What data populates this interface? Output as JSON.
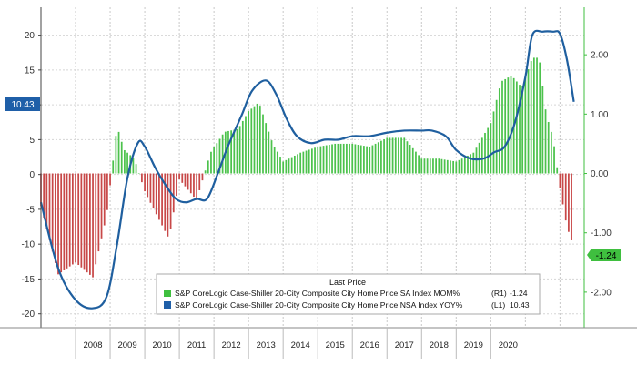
{
  "chart_data": {
    "type": "bar+line",
    "title": "",
    "x_labels": [
      "2008",
      "2009",
      "2010",
      "2011",
      "2012",
      "2013",
      "2014",
      "2015",
      "2016",
      "2017",
      "2018",
      "2019",
      "2020"
    ],
    "y_left": {
      "range": [
        -22,
        24
      ],
      "ticks": [
        20,
        15,
        10,
        5,
        0,
        -5,
        -10,
        -15,
        -20
      ]
    },
    "y_right": {
      "range": [
        -2.6,
        2.8
      ],
      "ticks": [
        "2.00",
        "1.00",
        "0.00",
        "-1.00",
        "-2.00"
      ]
    },
    "last_price_left": "10.43",
    "last_price_right": "-1.24",
    "legend": {
      "title": "Last Price",
      "entries": [
        {
          "label": "S&P CoreLogic Case-Shiller 20-City Composite City Home Price SA Index MOM%",
          "axis": "(R1)",
          "value": "-1.24",
          "color": "#3fbf3f"
        },
        {
          "label": "S&P CoreLogic Case-Shiller 20-City Composite City Home Price NSA Index YOY%",
          "axis": "(L1)",
          "value": "10.43",
          "color": "#1f5fa8"
        }
      ]
    },
    "series": [
      {
        "name": "S&P CoreLogic Case-Shiller 20-City Composite City Home Price SA Index MOM%",
        "type": "bar",
        "axis": "right",
        "x": [
          2007.0,
          2007.5,
          2008.0,
          2008.5,
          2008.9,
          2009.2,
          2009.4,
          2009.7,
          2010.0,
          2010.3,
          2010.7,
          2011.0,
          2011.5,
          2011.9,
          2012.3,
          2012.7,
          2013.0,
          2013.3,
          2013.7,
          2014.0,
          2014.5,
          2015.0,
          2015.5,
          2016.0,
          2016.5,
          2017.0,
          2017.5,
          2018.0,
          2018.5,
          2019.0,
          2019.5,
          2020.0,
          2020.3,
          2020.6,
          2020.9,
          2021.2,
          2021.4,
          2021.6,
          2021.8,
          2022.0,
          2022.2,
          2022.4
        ],
        "values": [
          -0.55,
          -1.7,
          -1.5,
          -1.75,
          -0.7,
          0.8,
          0.4,
          0.25,
          -0.3,
          -0.65,
          -1.1,
          -0.1,
          -0.45,
          0.35,
          0.7,
          0.75,
          1.05,
          1.2,
          0.5,
          0.2,
          0.35,
          0.45,
          0.5,
          0.5,
          0.45,
          0.6,
          0.6,
          0.25,
          0.25,
          0.2,
          0.35,
          0.85,
          1.55,
          1.65,
          1.45,
          1.95,
          1.95,
          1.0,
          0.6,
          -0.25,
          -0.9,
          -1.24
        ]
      },
      {
        "name": "S&P CoreLogic Case-Shiller 20-City Composite City Home Price NSA Index YOY%",
        "type": "line",
        "axis": "left",
        "x": [
          2007.0,
          2007.5,
          2008.0,
          2008.5,
          2008.9,
          2009.2,
          2009.5,
          2009.8,
          2010.0,
          2010.3,
          2010.6,
          2010.9,
          2011.2,
          2011.5,
          2011.8,
          2012.1,
          2012.4,
          2012.8,
          2013.1,
          2013.5,
          2013.8,
          2014.1,
          2014.4,
          2014.8,
          2015.2,
          2015.6,
          2016.0,
          2016.5,
          2017.0,
          2017.5,
          2018.0,
          2018.3,
          2018.7,
          2019.0,
          2019.4,
          2019.8,
          2020.1,
          2020.4,
          2020.7,
          2021.0,
          2021.2,
          2021.5,
          2021.8,
          2022.0,
          2022.2,
          2022.4
        ],
        "values": [
          -4.0,
          -13.5,
          -18.0,
          -19.2,
          -17.5,
          -10.0,
          -0.5,
          4.5,
          4.0,
          1.0,
          -1.5,
          -3.5,
          -4.0,
          -3.5,
          -3.5,
          0.0,
          4.0,
          8.5,
          12.0,
          13.5,
          11.5,
          8.0,
          5.5,
          4.5,
          5.0,
          5.0,
          5.5,
          5.5,
          6.0,
          6.3,
          6.3,
          6.3,
          5.5,
          3.5,
          2.3,
          2.3,
          3.2,
          4.0,
          7.5,
          14.0,
          20.0,
          20.5,
          20.5,
          20.2,
          16.5,
          10.43
        ]
      }
    ]
  }
}
